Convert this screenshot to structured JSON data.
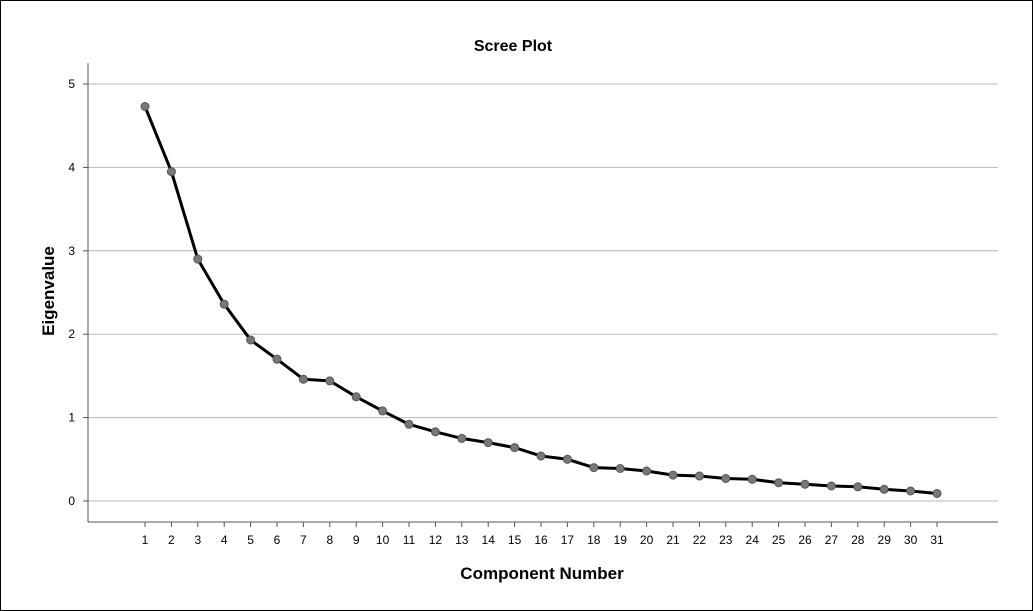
{
  "chart_data": {
    "type": "line",
    "title": "Scree Plot",
    "xlabel": "Component Number",
    "ylabel": "Eigenvalue",
    "ylim": [
      0,
      5
    ],
    "yticks": [
      0,
      1,
      2,
      3,
      4,
      5
    ],
    "grid": true,
    "x": [
      1,
      2,
      3,
      4,
      5,
      6,
      7,
      8,
      9,
      10,
      11,
      12,
      13,
      14,
      15,
      16,
      17,
      18,
      19,
      20,
      21,
      22,
      23,
      24,
      25,
      26,
      27,
      28,
      29,
      30,
      31
    ],
    "series": [
      {
        "values": [
          4.73,
          3.95,
          2.9,
          2.36,
          1.93,
          1.7,
          1.46,
          1.44,
          1.25,
          1.08,
          0.92,
          0.83,
          0.75,
          0.7,
          0.64,
          0.54,
          0.5,
          0.4,
          0.39,
          0.36,
          0.31,
          0.3,
          0.27,
          0.26,
          0.22,
          0.2,
          0.18,
          0.17,
          0.14,
          0.12,
          0.09
        ],
        "line_color": "#000000",
        "marker_color": "#777777"
      }
    ]
  }
}
